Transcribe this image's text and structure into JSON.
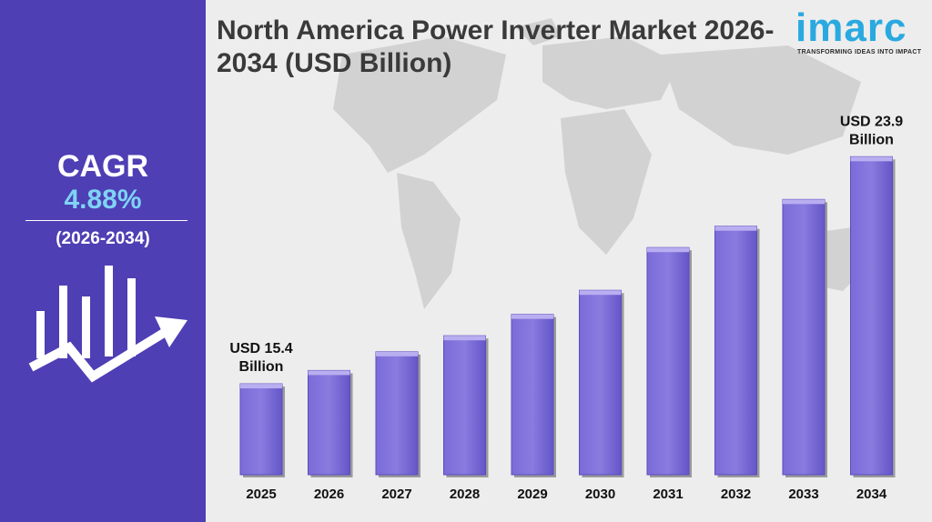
{
  "sidebar": {
    "cagr_label": "CAGR",
    "cagr_value": "4.88%",
    "period": "(2026-2034)"
  },
  "header": {
    "title": "North America Power Inverter Market 2026-2034 (USD Billion)"
  },
  "logo": {
    "name": "imarc",
    "tagline": "TRANSFORMING IDEAS INTO IMPACT"
  },
  "colors": {
    "sidebar": "#4e3fb4",
    "bar": "#7b6bd8",
    "bar_top": "#b9aef0",
    "accent": "#7fd3f5",
    "brand": "#2aa9e0"
  },
  "chart_data": {
    "type": "bar",
    "title": "North America Power Inverter Market 2026-2034 (USD Billion)",
    "categories": [
      "2025",
      "2026",
      "2027",
      "2028",
      "2029",
      "2030",
      "2031",
      "2032",
      "2033",
      "2034"
    ],
    "values": [
      15.4,
      15.9,
      16.6,
      17.2,
      18.0,
      18.9,
      20.5,
      21.3,
      22.3,
      23.9
    ],
    "ylim": [
      12,
      25
    ],
    "xlabel": "",
    "ylabel": "",
    "annotations": [
      {
        "index": 0,
        "lines": [
          "USD 15.4",
          "Billion"
        ]
      },
      {
        "index": 9,
        "lines": [
          "USD 23.9",
          "Billion"
        ]
      }
    ]
  }
}
